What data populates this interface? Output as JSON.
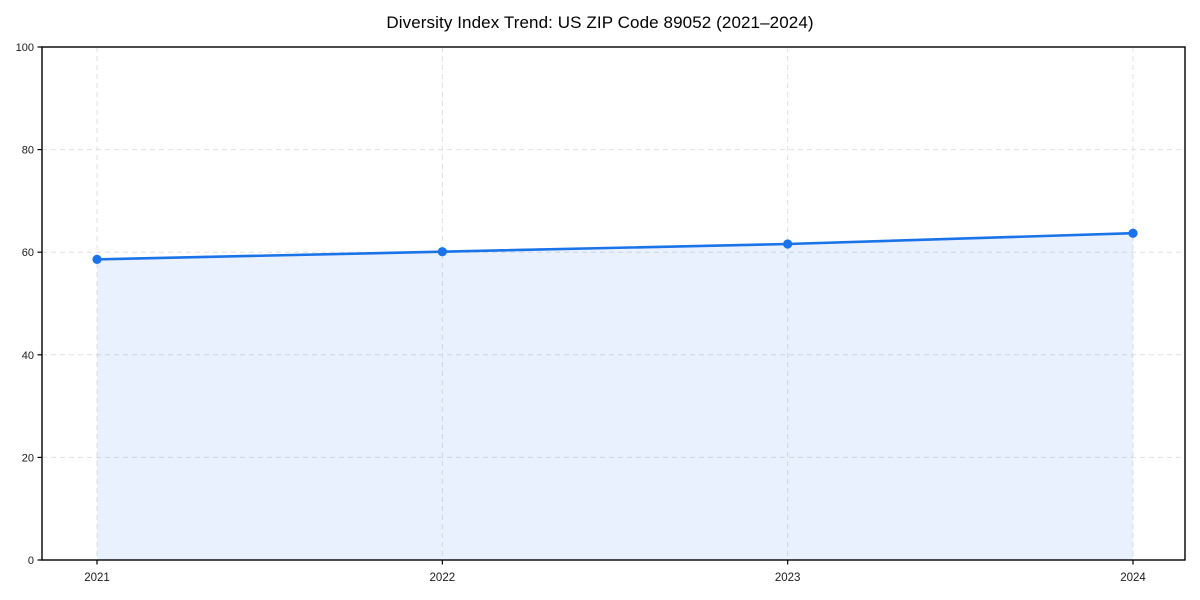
{
  "page": {
    "background_color": "#ffffff"
  },
  "chart_data": {
    "type": "area",
    "title": "Diversity Index Trend: US ZIP Code 89052 (2021–2024)",
    "categories": [
      "2021",
      "2022",
      "2023",
      "2024"
    ],
    "values": [
      58.6,
      60.1,
      61.6,
      63.7
    ],
    "xlabel": "",
    "ylabel": "",
    "ylim": [
      0,
      100
    ],
    "yticks": [
      0,
      20,
      40,
      60,
      80,
      100
    ],
    "grid": "dashed horizontal and vertical gridlines",
    "legend": "none",
    "marker": "circle",
    "colors": {
      "line": "#1a73e8",
      "marker": "#1a73e8",
      "area_fill": "rgba(26, 115, 232, 0.10)",
      "gridline": "#e0e0e0",
      "spine": "#000000",
      "tick_label": "#1a1a1a",
      "title": "#000000"
    }
  }
}
